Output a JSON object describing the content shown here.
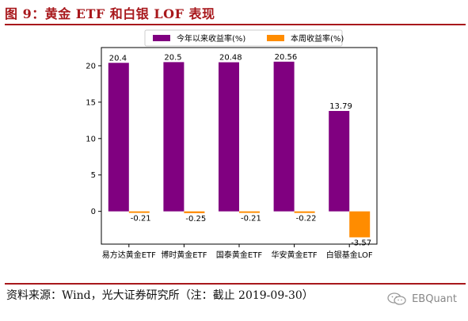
{
  "figure": {
    "title": "图 9：黄金 ETF 和白银 LOF 表现",
    "source": "资料来源：Wind，光大证券研究所（注：截止 2019-09-30）",
    "watermark": "EBQuant",
    "watermark_icon": "wechat-icon"
  },
  "colors": {
    "title": "#a8181c",
    "series_ytd": "#800080",
    "series_week": "#ff8c00"
  },
  "chart_data": {
    "type": "bar",
    "title": "",
    "xlabel": "",
    "ylabel": "",
    "categories": [
      "易方达黄金ETF",
      "博时黄金ETF",
      "国泰黄金ETF",
      "华安黄金ETF",
      "白银基金LOF"
    ],
    "series": [
      {
        "name": "今年以来收益率(%)",
        "values": [
          20.4,
          20.5,
          20.48,
          20.56,
          13.79
        ],
        "labels": [
          "20.4",
          "20.5",
          "20.48",
          "20.56",
          "13.79"
        ]
      },
      {
        "name": "本周收益率(%)",
        "values": [
          -0.21,
          -0.25,
          -0.21,
          -0.22,
          -3.57
        ],
        "labels": [
          "-0.21",
          "-0.25",
          "-0.21",
          "-0.22",
          "-3.57"
        ]
      }
    ],
    "ylim": [
      -4.5,
      22.5
    ],
    "yticks": [
      0,
      5,
      10,
      15,
      20
    ],
    "grid": false,
    "legend_position": "top"
  }
}
